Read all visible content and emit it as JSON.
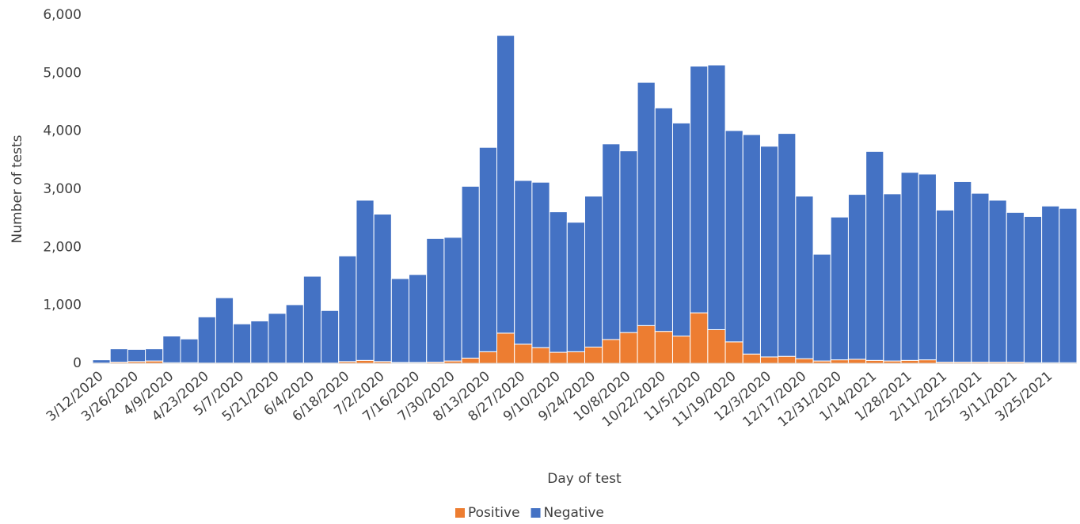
{
  "chart_data": {
    "type": "stacked-bar",
    "y_label": "Number of tests",
    "x_label": "Day of test",
    "categories": [
      "3/12/2020",
      null,
      "3/26/2020",
      null,
      "4/9/2020",
      null,
      "4/23/2020",
      null,
      "5/7/2020",
      null,
      "5/21/2020",
      null,
      "6/4/2020",
      null,
      "6/18/2020",
      null,
      "7/2/2020",
      null,
      "7/16/2020",
      null,
      "7/30/2020",
      null,
      "8/13/2020",
      null,
      "8/27/2020",
      null,
      "9/10/2020",
      null,
      "9/24/2020",
      null,
      "10/8/2020",
      null,
      "10/22/2020",
      null,
      "11/5/2020",
      null,
      "11/19/2020",
      null,
      "12/3/2020",
      null,
      "12/17/2020",
      null,
      "12/31/2020",
      null,
      "1/14/2021",
      null,
      "1/28/2021",
      null,
      "2/11/2021",
      null,
      "2/25/2021",
      null,
      "3/11/2021",
      null,
      "3/25/2021",
      null
    ],
    "series": [
      {
        "name": "Positive",
        "color": "#ed7d31",
        "values": [
          5,
          20,
          30,
          40,
          10,
          10,
          5,
          5,
          5,
          5,
          5,
          5,
          5,
          5,
          30,
          50,
          30,
          15,
          15,
          20,
          40,
          90,
          200,
          520,
          330,
          270,
          190,
          200,
          280,
          410,
          530,
          650,
          550,
          470,
          870,
          580,
          370,
          160,
          110,
          120,
          80,
          40,
          60,
          70,
          50,
          40,
          50,
          60,
          20,
          20,
          20,
          20,
          20,
          10,
          10,
          10
        ]
      },
      {
        "name": "Negative",
        "color": "#4472c4",
        "values": [
          55,
          230,
          210,
          210,
          460,
          410,
          795,
          1125,
          675,
          725,
          855,
          1005,
          1495,
          905,
          1820,
          2760,
          2540,
          1445,
          1515,
          2130,
          2130,
          2960,
          3520,
          5130,
          2820,
          2850,
          2420,
          2230,
          2600,
          3370,
          3130,
          4190,
          3850,
          3670,
          4250,
          4560,
          3640,
          3780,
          3630,
          3840,
          2800,
          1840,
          2460,
          2840,
          3600,
          2880,
          3240,
          3200,
          2620,
          3110,
          2910,
          2790,
          2580,
          2520,
          2700,
          2660
        ]
      }
    ],
    "ylim": [
      0,
      6000
    ],
    "yticks": [
      0,
      {
        "value": 1000,
        "label": "1,000"
      },
      {
        "value": 2000,
        "label": "2,000"
      },
      {
        "value": 3000,
        "label": "3,000"
      },
      {
        "value": 4000,
        "label": "4,000"
      },
      {
        "value": 5000,
        "label": "5,000"
      },
      {
        "value": 6000,
        "label": "6,000"
      }
    ],
    "legend": "bottom"
  }
}
